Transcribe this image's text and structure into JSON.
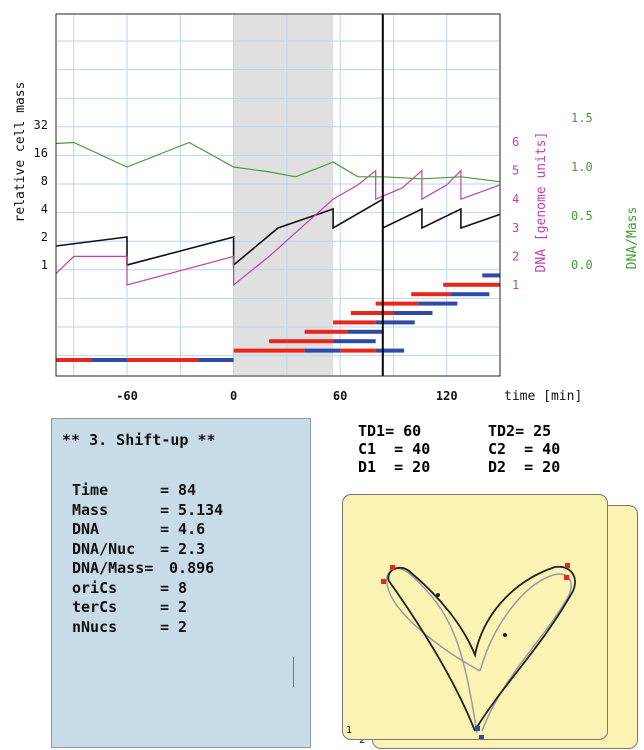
{
  "plot": {
    "ylabel": "relative cell mass",
    "dna_label": "DNA [genome units]",
    "ratio_label": "DNA/Mass",
    "time_label": "time [min]",
    "mass_ticks": [
      "32",
      "16",
      "8",
      "4",
      "2",
      "1"
    ],
    "dna_ticks": [
      "6",
      "5",
      "4",
      "3",
      "2",
      "1"
    ],
    "ratio_ticks": [
      "1.5",
      "1.0",
      "0.5",
      "0.0"
    ],
    "time_ticks": [
      "-60",
      "0",
      "60",
      "120"
    ],
    "colors": {
      "mass": "#111111",
      "dna": "#c040b0",
      "ratio": "#4a9a3a",
      "rep_red": "#e8261c",
      "rep_blue": "#2e4aa8",
      "grid": "#b9d6ee",
      "shade": "#e0e0e0"
    },
    "shift_window": [
      0,
      56
    ],
    "cursor_time": 84
  },
  "chart_data": {
    "type": "line",
    "xlabel": "time [min]",
    "ylabel": "relative cell mass",
    "xlim": [
      -100,
      150
    ],
    "series": [
      {
        "name": "relative cell mass",
        "scale": "log2",
        "x": [
          -100,
          -60,
          -60,
          0,
          0,
          25,
          56,
          56,
          84,
          84,
          106,
          106,
          128,
          128,
          150
        ],
        "y": [
          1.6,
          2,
          1,
          2,
          1,
          2.5,
          4,
          2.5,
          5.1,
          2.5,
          4,
          2.5,
          4,
          2.5,
          3.5
        ]
      },
      {
        "name": "DNA [genome units]",
        "x": [
          -100,
          -90,
          -60,
          -60,
          0,
          0,
          20,
          56,
          56,
          70,
          80,
          80,
          95,
          106,
          106,
          120,
          128,
          128,
          150
        ],
        "y": [
          1.4,
          2,
          2,
          1,
          2,
          1,
          2,
          4,
          4,
          4.5,
          5,
          4,
          4.4,
          5,
          4,
          4.5,
          5,
          4,
          4.5
        ]
      },
      {
        "name": "DNA/Mass",
        "x": [
          -100,
          -90,
          -60,
          -25,
          0,
          20,
          35,
          56,
          70,
          84,
          106,
          128,
          150
        ],
        "y": [
          1.24,
          1.25,
          1.0,
          1.25,
          1.0,
          0.95,
          0.9,
          1.05,
          0.9,
          0.9,
          0.88,
          0.9,
          0.85
        ]
      }
    ]
  },
  "replication_bars": [
    {
      "y": 0,
      "segments": [
        [
          -100,
          -80,
          "red"
        ],
        [
          -80,
          -60,
          "blue"
        ],
        [
          -60,
          -20,
          "red"
        ],
        [
          -20,
          0,
          "blue"
        ]
      ]
    },
    {
      "y": 1,
      "segments": [
        [
          0,
          40,
          "red"
        ],
        [
          40,
          60,
          "blue"
        ],
        [
          60,
          80,
          "red"
        ],
        [
          80,
          96,
          "blue"
        ]
      ]
    },
    {
      "y": 2,
      "segments": [
        [
          20,
          56,
          "red"
        ],
        [
          56,
          80,
          "blue"
        ]
      ]
    },
    {
      "y": 3,
      "segments": [
        [
          40,
          64,
          "red"
        ],
        [
          64,
          84,
          "blue"
        ]
      ]
    },
    {
      "y": 4,
      "segments": [
        [
          56,
          80,
          "red"
        ],
        [
          80,
          102,
          "blue"
        ]
      ]
    },
    {
      "y": 5,
      "segments": [
        [
          66,
          90,
          "red"
        ],
        [
          90,
          112,
          "blue"
        ]
      ]
    },
    {
      "y": 6,
      "segments": [
        [
          80,
          104,
          "red"
        ],
        [
          104,
          126,
          "blue"
        ]
      ]
    },
    {
      "y": 7,
      "segments": [
        [
          100,
          122,
          "red"
        ],
        [
          122,
          144,
          "blue"
        ]
      ]
    },
    {
      "y": 8,
      "segments": [
        [
          118,
          150,
          "red"
        ]
      ]
    },
    {
      "y": 9,
      "segments": [
        [
          140,
          150,
          "blue"
        ]
      ]
    }
  ],
  "status": {
    "title": "** 3. Shift-up **",
    "rows": [
      {
        "key": "Time",
        "value": "= 84"
      },
      {
        "key": "Mass",
        "value": "= 5.134"
      },
      {
        "key": "DNA",
        "value": "= 4.6"
      },
      {
        "key": "DNA/Nuc",
        "value": "= 2.3"
      },
      {
        "key": "DNA/Mass=",
        "value": " 0.896"
      },
      {
        "key": "oriCs",
        "value": "= 8"
      },
      {
        "key": "terCs",
        "value": "= 2"
      },
      {
        "key": "nNucs",
        "value": "= 2"
      }
    ]
  },
  "params": {
    "row1a": "TD1= 60",
    "row1b": "TD2= 25",
    "row2a": "C1  = 40",
    "row2b": "C2  = 40",
    "row3a": "D1  = 20",
    "row3b": "D2  = 20"
  },
  "cell_cards": {
    "front_label": "1",
    "back_label": "2"
  }
}
